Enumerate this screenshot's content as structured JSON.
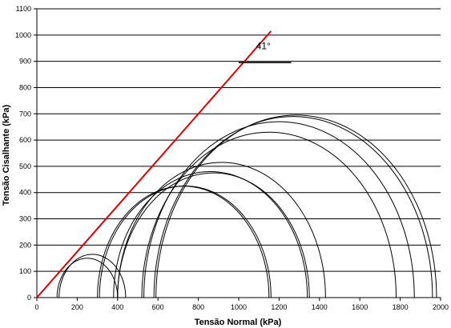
{
  "chart_data": {
    "type": "line",
    "title": "",
    "xlabel": "Tensão Normal (kPa)",
    "ylabel": "Tensão Cisalhante (kPa)",
    "xlim": [
      0,
      2000
    ],
    "ylim": [
      0,
      1100
    ],
    "x_ticks": [
      0,
      200,
      400,
      600,
      800,
      1000,
      1200,
      1400,
      1600,
      1800,
      2000
    ],
    "y_ticks": [
      0,
      100,
      200,
      300,
      400,
      500,
      600,
      700,
      800,
      900,
      1000,
      1100
    ],
    "grid": "horizontal",
    "mohr_circles": [
      {
        "sigma3": 100,
        "sigma1": 400
      },
      {
        "sigma3": 110,
        "sigma1": 440
      },
      {
        "sigma3": 300,
        "sigma1": 1150
      },
      {
        "sigma3": 310,
        "sigma1": 1160
      },
      {
        "sigma3": 380,
        "sigma1": 1340
      },
      {
        "sigma3": 400,
        "sigma1": 1350
      },
      {
        "sigma3": 400,
        "sigma1": 1430
      },
      {
        "sigma3": 520,
        "sigma1": 1780
      },
      {
        "sigma3": 530,
        "sigma1": 1870
      },
      {
        "sigma3": 580,
        "sigma1": 1960
      },
      {
        "sigma3": 590,
        "sigma1": 1980
      }
    ],
    "envelope": {
      "x": [
        0,
        1160
      ],
      "y": [
        0,
        1015
      ],
      "color": "#e00000"
    },
    "angle_marker": {
      "label": "41°",
      "x": [
        1000,
        1260
      ],
      "y": 895
    }
  }
}
